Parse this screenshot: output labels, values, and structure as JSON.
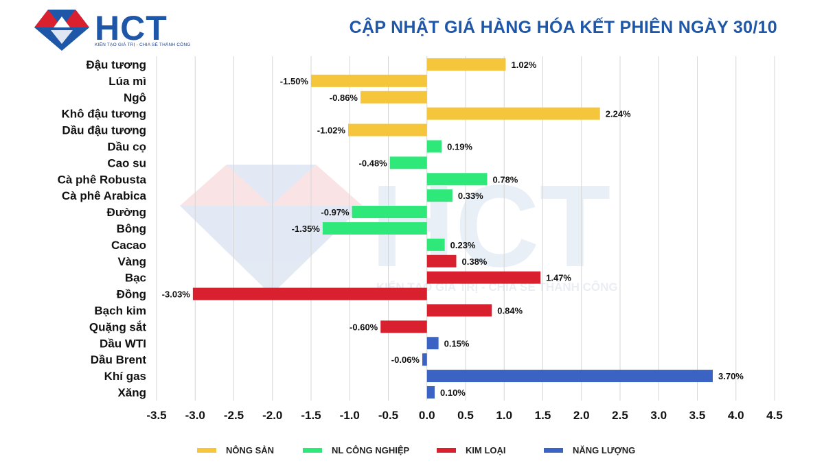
{
  "header": {
    "title": "CẬP NHẬT GIÁ HÀNG HÓA KẾT PHIÊN NGÀY 30/10",
    "logo_text": "HCT",
    "logo_tagline": "KIẾN TẠO GIÁ TRỊ - CHIA SẺ THÀNH CÔNG"
  },
  "watermark": {
    "text": "HCT",
    "tagline": "KIẾN TẠO GIÁ TRỊ - CHIA SẺ THÀNH CÔNG"
  },
  "colors": {
    "Nông sản": "#f5c63b",
    "NL công nghiệp": "#2ee87a",
    "Kim loại": "#d9202f",
    "Năng lượng": "#3b63c4",
    "logo_blue": "#1e56a8",
    "logo_red": "#d9202f"
  },
  "chart_data": {
    "type": "bar",
    "orientation": "horizontal",
    "categories": [
      "Đậu tương",
      "Lúa mì",
      "Ngô",
      "Khô đậu tương",
      "Dầu đậu tương",
      "Dầu cọ",
      "Cao su",
      "Cà phê Robusta",
      "Cà phê Arabica",
      "Đường",
      "Bông",
      "Cacao",
      "Vàng",
      "Bạc",
      "Đồng",
      "Bạch kim",
      "Quặng sắt",
      "Dầu WTI",
      "Dầu Brent",
      "Khí gas",
      "Xăng"
    ],
    "values": [
      1.02,
      -1.5,
      -0.86,
      2.24,
      -1.02,
      0.19,
      -0.48,
      0.78,
      0.33,
      -0.97,
      -1.35,
      0.23,
      0.38,
      1.47,
      -3.03,
      0.84,
      -0.6,
      0.15,
      -0.06,
      3.7,
      0.1
    ],
    "value_labels": [
      "1.02%",
      "-1.50%",
      "-0.86%",
      "2.24%",
      "-1.02%",
      "0.19%",
      "-0.48%",
      "0.78%",
      "0.33%",
      "-0.97%",
      "-1.35%",
      "0.23%",
      "0.38%",
      "1.47%",
      "-3.03%",
      "0.84%",
      "-0.60%",
      "0.15%",
      "-0.06%",
      "3.70%",
      "0.10%"
    ],
    "groups": [
      "NÔNG SẢN",
      "NÔNG SẢN",
      "NÔNG SẢN",
      "NÔNG SẢN",
      "NÔNG SẢN",
      "NL CÔNG NGHIỆP",
      "NL CÔNG NGHIỆP",
      "NL CÔNG NGHIỆP",
      "NL CÔNG NGHIỆP",
      "NL CÔNG NGHIỆP",
      "NL CÔNG NGHIỆP",
      "NL CÔNG NGHIỆP",
      "KIM LOẠI",
      "KIM LOẠI",
      "KIM LOẠI",
      "KIM LOẠI",
      "KIM LOẠI",
      "NĂNG LƯỢNG",
      "NĂNG LƯỢNG",
      "NĂNG LƯỢNG",
      "NĂNG LƯỢNG"
    ],
    "legend": [
      {
        "name": "NÔNG SẢN",
        "color": "#f5c63b"
      },
      {
        "name": "NL CÔNG NGHIỆP",
        "color": "#2ee87a"
      },
      {
        "name": "KIM LOẠI",
        "color": "#d9202f"
      },
      {
        "name": "NĂNG LƯỢNG",
        "color": "#3b63c4"
      }
    ],
    "xlim": [
      -3.5,
      4.5
    ],
    "xticks": [
      -3.5,
      -3.0,
      -2.5,
      -2.0,
      -1.5,
      -1.0,
      -0.5,
      0.0,
      0.5,
      1.0,
      1.5,
      2.0,
      2.5,
      3.0,
      3.5,
      4.0,
      4.5
    ],
    "xtick_labels": [
      "-3.5",
      "-3.0",
      "-2.5",
      "-2.0",
      "-1.5",
      "-1.0",
      "-0.5",
      "0.0",
      "0.5",
      "1.0",
      "1.5",
      "2.0",
      "2.5",
      "3.0",
      "3.5",
      "4.0",
      "4.5"
    ],
    "grid": "vertical",
    "legend_position": "bottom"
  }
}
